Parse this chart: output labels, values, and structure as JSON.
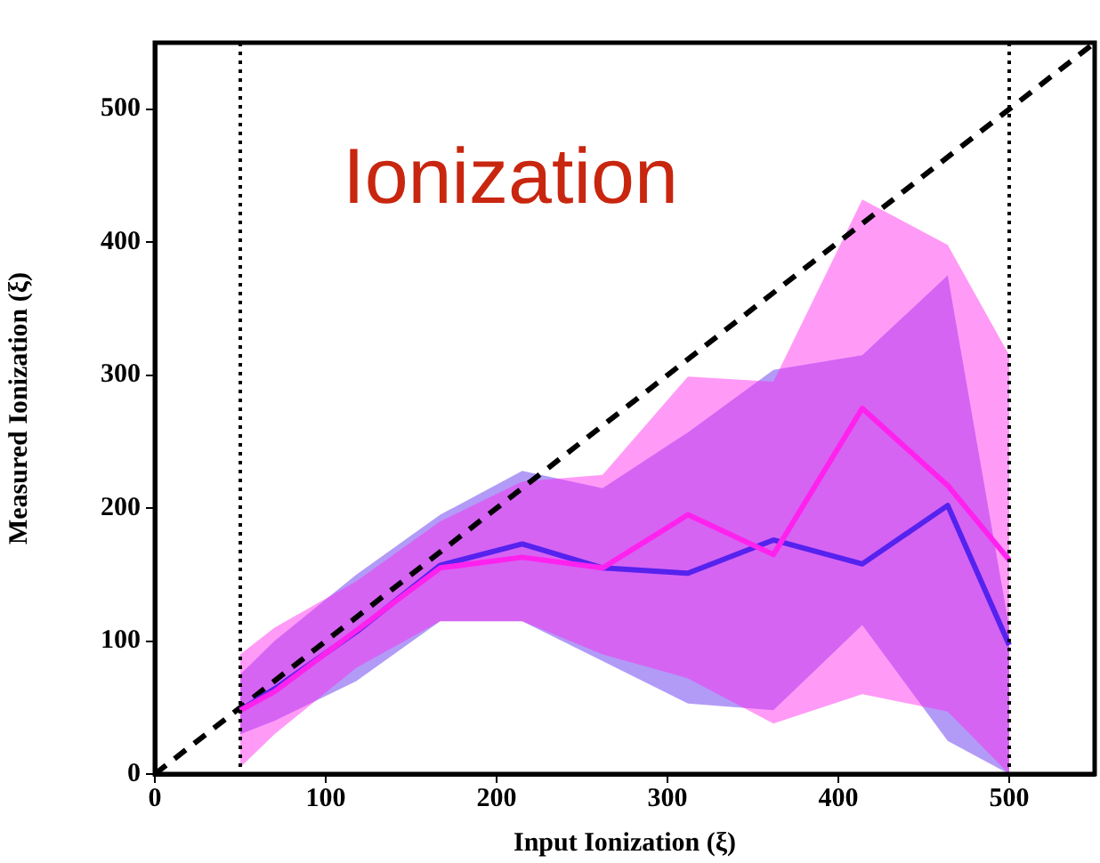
{
  "chart_data": {
    "type": "line",
    "title": "Ionization",
    "xlabel": "Input Ionization (ξ)",
    "ylabel": "Measured Ionization (ξ)",
    "x": [
      50,
      70,
      118,
      167,
      215,
      262,
      312,
      362,
      414,
      464,
      500
    ],
    "series": [
      {
        "color": "#ff22ee",
        "values": [
          48,
          62,
          108,
          155,
          163,
          155,
          195,
          165,
          275,
          217,
          161
        ],
        "lower": [
          5,
          30,
          80,
          115,
          115,
          90,
          72,
          38,
          60,
          47,
          0
        ],
        "upper": [
          90,
          110,
          145,
          190,
          220,
          225,
          299,
          295,
          432,
          398,
          315
        ]
      },
      {
        "color": "#5522ee",
        "values": [
          48,
          64,
          107,
          157,
          173,
          155,
          151,
          176,
          158,
          202,
          97
        ],
        "lower": [
          30,
          40,
          70,
          115,
          115,
          85,
          53,
          48,
          112,
          25,
          0
        ],
        "upper": [
          75,
          100,
          150,
          195,
          228,
          215,
          257,
          304,
          315,
          375,
          110
        ]
      },
      {
        "color": "#000000",
        "x": [
          0,
          550
        ],
        "values": [
          0,
          550
        ],
        "line_style": "dashed"
      }
    ],
    "ref_lines": [
      {
        "axis": "x",
        "value": 50,
        "line_style": "dotted",
        "color": "#000000"
      },
      {
        "axis": "x",
        "value": 500,
        "line_style": "dotted",
        "color": "#000000"
      }
    ],
    "xlim": [
      0,
      550
    ],
    "ylim": [
      0,
      550
    ],
    "xticks": [
      0,
      100,
      200,
      300,
      400,
      500
    ],
    "yticks": [
      0,
      100,
      200,
      300,
      400,
      500
    ],
    "grid": false,
    "legend": false
  }
}
